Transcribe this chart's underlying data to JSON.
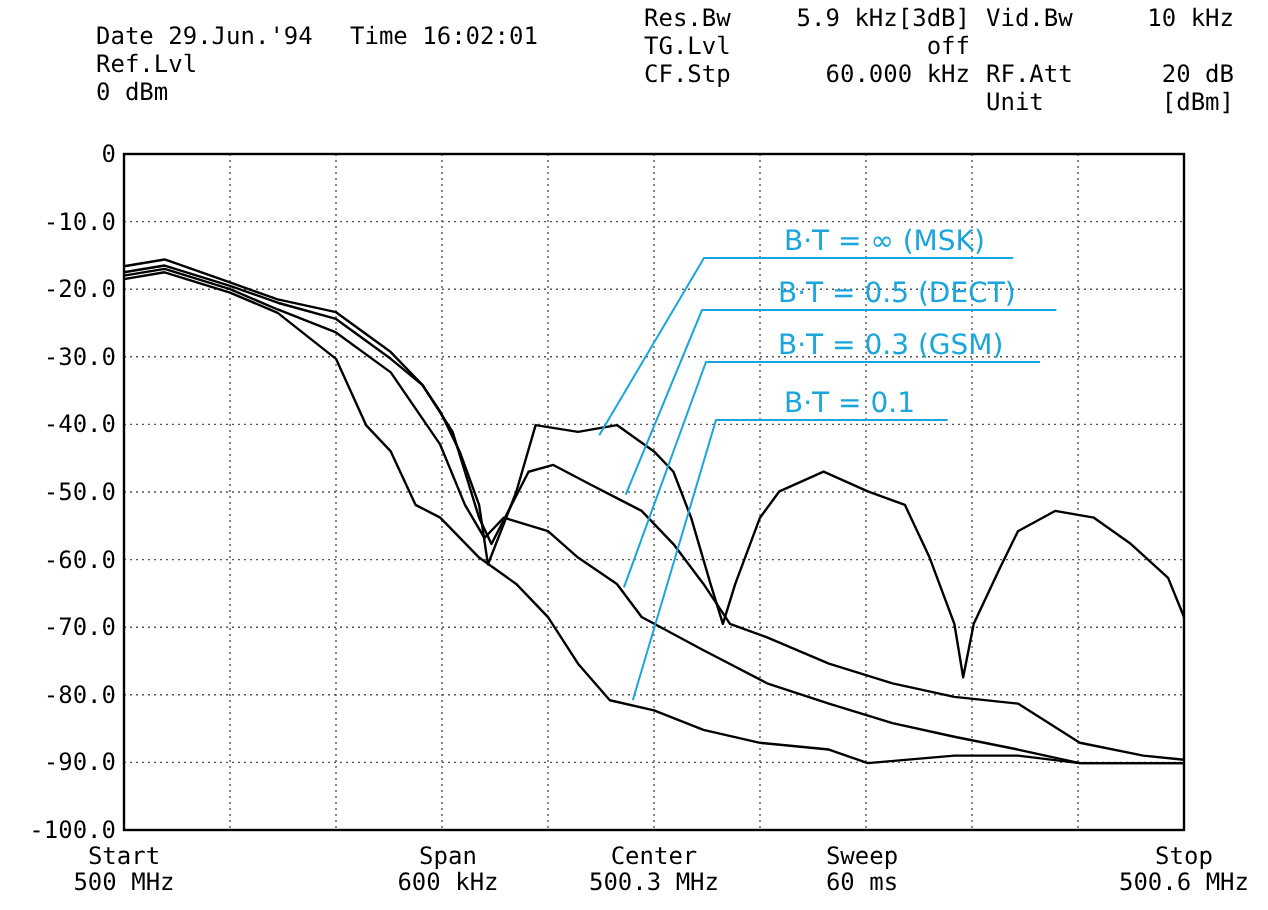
{
  "chart_data": {
    "type": "line",
    "xlim": [
      500,
      500.6
    ],
    "xticks": [
      {
        "value": 500,
        "label": "500 MHz"
      },
      {
        "value": 500.06,
        "label": null
      },
      {
        "value": 500.12,
        "label": null
      },
      {
        "value": 500.18,
        "label": null
      },
      {
        "value": 500.24,
        "label": null
      },
      {
        "value": 500.3,
        "label": "500.3 MHz"
      },
      {
        "value": 500.36,
        "label": null
      },
      {
        "value": 500.42,
        "label": null
      },
      {
        "value": 500.48,
        "label": null
      },
      {
        "value": 500.54,
        "label": null
      },
      {
        "value": 500.6,
        "label": "500.6 MHz"
      }
    ],
    "ylim": [
      -100,
      0
    ],
    "yticks": [
      0,
      {
        "value": -10,
        "label": "-10.0"
      },
      {
        "value": -20,
        "label": "-20.0"
      },
      {
        "value": -30,
        "label": "-30.0"
      },
      {
        "value": -40,
        "label": "-40.0"
      },
      {
        "value": -50,
        "label": "-50.0"
      },
      {
        "value": -60,
        "label": "-60.0"
      },
      {
        "value": -70,
        "label": "-70.0"
      },
      {
        "value": -80,
        "label": "-80.0"
      },
      {
        "value": -90,
        "label": "-90.0"
      },
      {
        "value": -100,
        "label": "-100.0"
      }
    ],
    "grid": true,
    "line_style": "solid",
    "marker": "none",
    "annotations": [
      "Date 29.Jun.'94",
      "Time 16:02:01",
      "Ref.Lvl",
      "0 dBm",
      "Res.Bw",
      "5.9 kHz[3dB]",
      "TG.Lvl",
      "off",
      "CF.Stp",
      "60.000 kHz",
      "Vid.Bw",
      "10 kHz",
      "RF.Att",
      "20 dB",
      "Unit",
      "[dBm]",
      "Span\n600 kHz",
      "Sweep\n60 ms",
      "Start",
      "Center",
      "Stop",
      {
        "text": "B·T = ∞ (MSK)",
        "x": 500.269,
        "y": -41.6
      },
      {
        "text": "B·T = 0.5 (DECT)",
        "x": 500.284,
        "y": -50.4
      },
      {
        "text": "B·T = 0.3 (GSM)",
        "x": 500.283,
        "y": -64.1
      },
      {
        "text": "B·T = 0.1",
        "x": 500.288,
        "y": -80.8
      }
    ],
    "series": [
      {
        "color": "#000000",
        "x": [
          500,
          500.023,
          500.06,
          500.087,
          500.12,
          500.151,
          500.169,
          500.179,
          500.19,
          500.201,
          500.206,
          500.222,
          500.233,
          500.257,
          500.279,
          500.3,
          500.311,
          500.321,
          500.332,
          500.339,
          500.346,
          500.36,
          500.371,
          500.396,
          500.421,
          500.442,
          500.456,
          500.47,
          500.475,
          500.481,
          500.495,
          500.506,
          500.527,
          500.549,
          500.57,
          500.591,
          500.6
        ],
        "values": [
          -16.6,
          -15.6,
          -19,
          -21.5,
          -23.4,
          -29.3,
          -34.2,
          -38.1,
          -44,
          -51.9,
          -60.7,
          -50,
          -40.1,
          -41.1,
          -40.1,
          -44,
          -47,
          -53.8,
          -63.6,
          -69.5,
          -63.6,
          -53.8,
          -49.9,
          -47,
          -49.9,
          -51.9,
          -59.7,
          -69.5,
          -77.4,
          -69.5,
          -61.7,
          -55.8,
          -52.8,
          -53.8,
          -57.7,
          -62.7,
          -68.5
        ]
      },
      {
        "color": "#000000",
        "x": [
          500,
          500.023,
          500.06,
          500.087,
          500.12,
          500.151,
          500.169,
          500.186,
          500.201,
          500.208,
          500.229,
          500.243,
          500.264,
          500.279,
          500.293,
          500.311,
          500.328,
          500.343,
          500.364,
          500.399,
          500.435,
          500.47,
          500.506,
          500.541,
          500.577,
          500.6
        ],
        "values": [
          -17.5,
          -16.5,
          -19.5,
          -22,
          -24.4,
          -30.3,
          -34.2,
          -41.1,
          -53.8,
          -57.7,
          -47,
          -46,
          -48.9,
          -50.9,
          -52.8,
          -57.7,
          -63.6,
          -69.5,
          -71.5,
          -75.4,
          -78.3,
          -80.3,
          -81.3,
          -87.1,
          -89,
          -89.6
        ]
      },
      {
        "color": "#000000",
        "x": [
          500,
          500.023,
          500.06,
          500.087,
          500.12,
          500.151,
          500.179,
          500.193,
          500.204,
          500.215,
          500.24,
          500.257,
          500.279,
          500.293,
          500.328,
          500.364,
          500.399,
          500.435,
          500.47,
          500.506,
          500.541,
          500.6
        ],
        "values": [
          -18,
          -17,
          -20,
          -23,
          -26.4,
          -32.3,
          -43,
          -51.9,
          -56.8,
          -53.8,
          -55.8,
          -59.7,
          -63.6,
          -68.5,
          -73.4,
          -78.3,
          -81.3,
          -84.2,
          -86.2,
          -88.1,
          -90.1,
          -90.1
        ]
      },
      {
        "color": "#000000",
        "x": [
          500,
          500.023,
          500.06,
          500.087,
          500.12,
          500.137,
          500.151,
          500.165,
          500.179,
          500.201,
          500.222,
          500.24,
          500.257,
          500.275,
          500.3,
          500.328,
          500.36,
          500.399,
          500.421,
          500.47,
          500.506,
          500.541,
          500.6
        ],
        "values": [
          -18.5,
          -17.5,
          -20.5,
          -23.5,
          -30.3,
          -40.1,
          -44,
          -51.9,
          -53.8,
          -59.7,
          -63.6,
          -68.5,
          -75.4,
          -80.8,
          -82.3,
          -85.2,
          -87.1,
          -88.1,
          -90.1,
          -89,
          -89,
          -90.1,
          -90.1
        ]
      }
    ]
  }
}
